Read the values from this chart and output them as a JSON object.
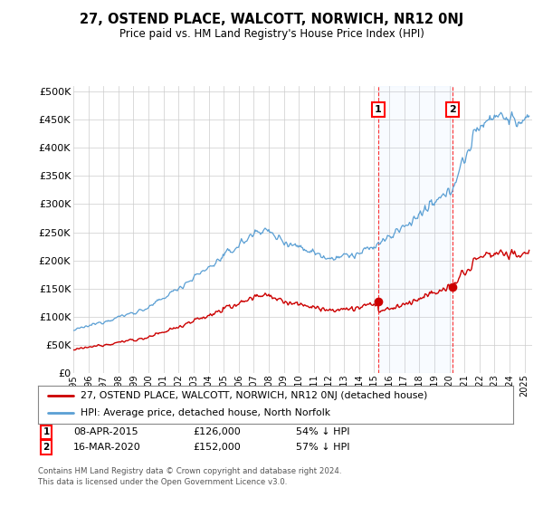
{
  "title": "27, OSTEND PLACE, WALCOTT, NORWICH, NR12 0NJ",
  "subtitle": "Price paid vs. HM Land Registry's House Price Index (HPI)",
  "ylabel_ticks": [
    "£0",
    "£50K",
    "£100K",
    "£150K",
    "£200K",
    "£250K",
    "£300K",
    "£350K",
    "£400K",
    "£450K",
    "£500K"
  ],
  "ytick_values": [
    0,
    50000,
    100000,
    150000,
    200000,
    250000,
    300000,
    350000,
    400000,
    450000,
    500000
  ],
  "ylim": [
    0,
    510000
  ],
  "xlim_start": 1995.0,
  "xlim_end": 2025.5,
  "hpi_color": "#5a9fd4",
  "price_color": "#cc0000",
  "background_color": "#ffffff",
  "grid_color": "#cccccc",
  "sale1_date": 2015.27,
  "sale1_price": 126000,
  "sale2_date": 2020.21,
  "sale2_price": 152000,
  "legend_line1": "27, OSTEND PLACE, WALCOTT, NORWICH, NR12 0NJ (detached house)",
  "legend_line2": "HPI: Average price, detached house, North Norfolk",
  "footer": "Contains HM Land Registry data © Crown copyright and database right 2024.\nThis data is licensed under the Open Government Licence v3.0."
}
